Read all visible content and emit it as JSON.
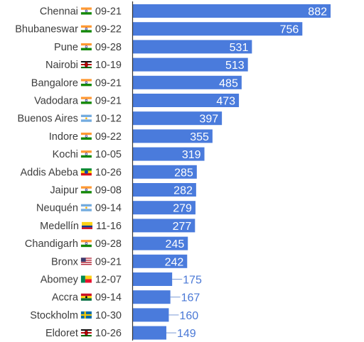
{
  "chart_data": {
    "type": "bar",
    "orientation": "horizontal",
    "title": "",
    "xlabel": "",
    "ylabel": "",
    "bar_color": "#4a7bdc",
    "value_label_outside_color": "#4a78d6",
    "value_label_inside_color": "#ffffff",
    "xlim": [
      0,
      900
    ],
    "grid": false,
    "legend": "none",
    "categories": [
      {
        "city": "Chennai",
        "flag": "india-flag-icon",
        "date": "09-21",
        "value": 882
      },
      {
        "city": "Bhubaneswar",
        "flag": "india-flag-icon",
        "date": "09-22",
        "value": 756
      },
      {
        "city": "Pune",
        "flag": "india-flag-icon",
        "date": "09-28",
        "value": 531
      },
      {
        "city": "Nairobi",
        "flag": "kenya-flag-icon",
        "date": "10-19",
        "value": 513
      },
      {
        "city": "Bangalore",
        "flag": "india-flag-icon",
        "date": "09-21",
        "value": 485
      },
      {
        "city": "Vadodara",
        "flag": "india-flag-icon",
        "date": "09-21",
        "value": 473
      },
      {
        "city": "Buenos Aires",
        "flag": "argentina-flag-icon",
        "date": "10-12",
        "value": 397
      },
      {
        "city": "Indore",
        "flag": "india-flag-icon",
        "date": "09-22",
        "value": 355
      },
      {
        "city": "Kochi",
        "flag": "india-flag-icon",
        "date": "10-05",
        "value": 319
      },
      {
        "city": "Addis Abeba",
        "flag": "ethiopia-flag-icon",
        "date": "10-26",
        "value": 285
      },
      {
        "city": "Jaipur",
        "flag": "india-flag-icon",
        "date": "09-08",
        "value": 282
      },
      {
        "city": "Neuquén",
        "flag": "argentina-flag-icon",
        "date": "09-14",
        "value": 279
      },
      {
        "city": "Medellín",
        "flag": "colombia-flag-icon",
        "date": "11-16",
        "value": 277
      },
      {
        "city": "Chandigarh",
        "flag": "india-flag-icon",
        "date": "09-28",
        "value": 245
      },
      {
        "city": "Bronx",
        "flag": "usa-flag-icon",
        "date": "09-21",
        "value": 242
      },
      {
        "city": "Abomey",
        "flag": "benin-flag-icon",
        "date": "12-07",
        "value": 175
      },
      {
        "city": "Accra",
        "flag": "ghana-flag-icon",
        "date": "09-14",
        "value": 167
      },
      {
        "city": "Stockholm",
        "flag": "sweden-flag-icon",
        "date": "10-30",
        "value": 160
      },
      {
        "city": "Eldoret",
        "flag": "kenya-flag-icon",
        "date": "10-26",
        "value": 149
      }
    ]
  }
}
